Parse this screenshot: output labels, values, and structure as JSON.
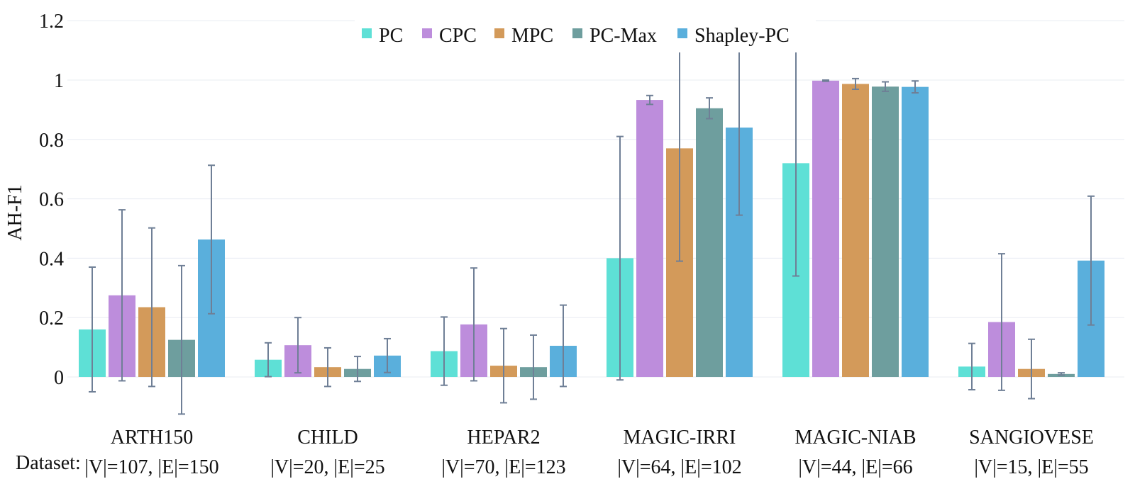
{
  "chart_data": {
    "type": "bar",
    "title": "",
    "xlabel": "Dataset:",
    "ylabel": "AH-F1",
    "ylim": [
      -0.1,
      1.2
    ],
    "yticks": [
      "0",
      "0.2",
      "0.4",
      "0.6",
      "0.8",
      "1",
      "1.2"
    ],
    "grid": true,
    "legend_position": "top-center",
    "categories": [
      "ARTH150",
      "CHILD",
      "HEPAR2",
      "MAGIC-IRRI",
      "MAGIC-NIAB",
      "SANGIOVESE"
    ],
    "category_sublabels": [
      "|V|=107, |E|=150",
      "|V|=20, |E|=25",
      "|V|=70, |E|=123",
      "|V|=64, |E|=102",
      "|V|=44, |E|=66",
      "|V|=15, |E|=55"
    ],
    "series": [
      {
        "name": "PC",
        "color": "#5ee0d6",
        "values": [
          0.16,
          0.058,
          0.087,
          0.4,
          0.72,
          0.035
        ],
        "error": [
          0.21,
          0.057,
          0.115,
          0.41,
          0.38,
          0.078
        ]
      },
      {
        "name": "CPC",
        "color": "#bd8ddc",
        "values": [
          0.275,
          0.107,
          0.177,
          0.933,
          0.998,
          0.185
        ],
        "error": [
          0.288,
          0.093,
          0.19,
          0.015,
          0.002,
          0.23
        ]
      },
      {
        "name": "MPC",
        "color": "#d39a5a",
        "values": [
          0.235,
          0.033,
          0.038,
          0.77,
          0.987,
          0.027
        ],
        "error": [
          0.267,
          0.065,
          0.125,
          0.38,
          0.018,
          0.1
        ]
      },
      {
        "name": "PC-Max",
        "color": "#6e9e9e",
        "values": [
          0.125,
          0.027,
          0.033,
          0.905,
          0.978,
          0.01
        ],
        "error": [
          0.25,
          0.042,
          0.108,
          0.035,
          0.016,
          0.004
        ]
      },
      {
        "name": "Shapley-PC",
        "color": "#5aafdc",
        "values": [
          0.463,
          0.072,
          0.105,
          0.84,
          0.977,
          0.392
        ],
        "error": [
          0.25,
          0.057,
          0.137,
          0.295,
          0.02,
          0.217
        ]
      }
    ],
    "error_bar_color": "#6f7f96"
  }
}
